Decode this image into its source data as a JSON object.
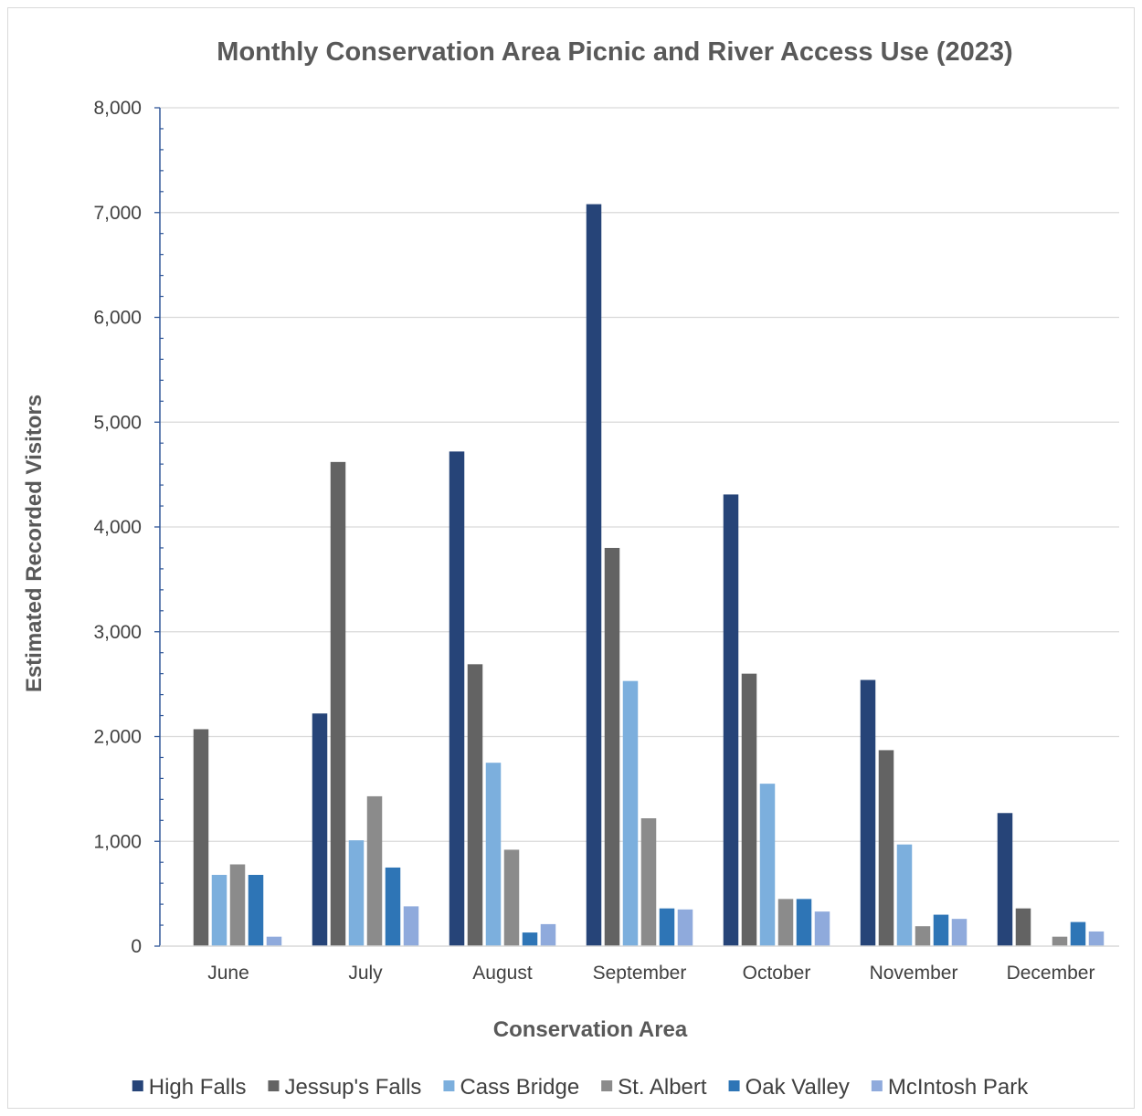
{
  "chart_data": {
    "type": "bar",
    "title": "Monthly Conservation Area Picnic and River Access Use (2023)",
    "xlabel": "Conservation Area",
    "ylabel": "Estimated Recorded Visitors",
    "categories": [
      "June",
      "July",
      "August",
      "September",
      "October",
      "November",
      "December"
    ],
    "ylim": [
      0,
      8000
    ],
    "yticks": [
      "0",
      "1,000",
      "2,000",
      "3,000",
      "4,000",
      "5,000",
      "6,000",
      "7,000",
      "8,000"
    ],
    "grid": true,
    "legend_position": "bottom",
    "series": [
      {
        "name": "High Falls",
        "color": "#264478",
        "values": [
          0,
          2220,
          4720,
          7080,
          4310,
          2540,
          1270
        ]
      },
      {
        "name": "Jessup's Falls",
        "color": "#636363",
        "values": [
          2070,
          4620,
          2690,
          3800,
          2600,
          1870,
          360
        ]
      },
      {
        "name": "Cass Bridge",
        "color": "#7cafdd",
        "values": [
          680,
          1010,
          1750,
          2530,
          1550,
          970,
          0
        ]
      },
      {
        "name": "St. Albert",
        "color": "#8b8b8b",
        "values": [
          780,
          1430,
          920,
          1220,
          450,
          190,
          90
        ]
      },
      {
        "name": "Oak Valley",
        "color": "#2e75b6",
        "values": [
          680,
          750,
          130,
          360,
          450,
          300,
          230
        ]
      },
      {
        "name": "McIntosh Park",
        "color": "#8faadc",
        "values": [
          90,
          380,
          210,
          350,
          330,
          260,
          140
        ]
      }
    ]
  }
}
